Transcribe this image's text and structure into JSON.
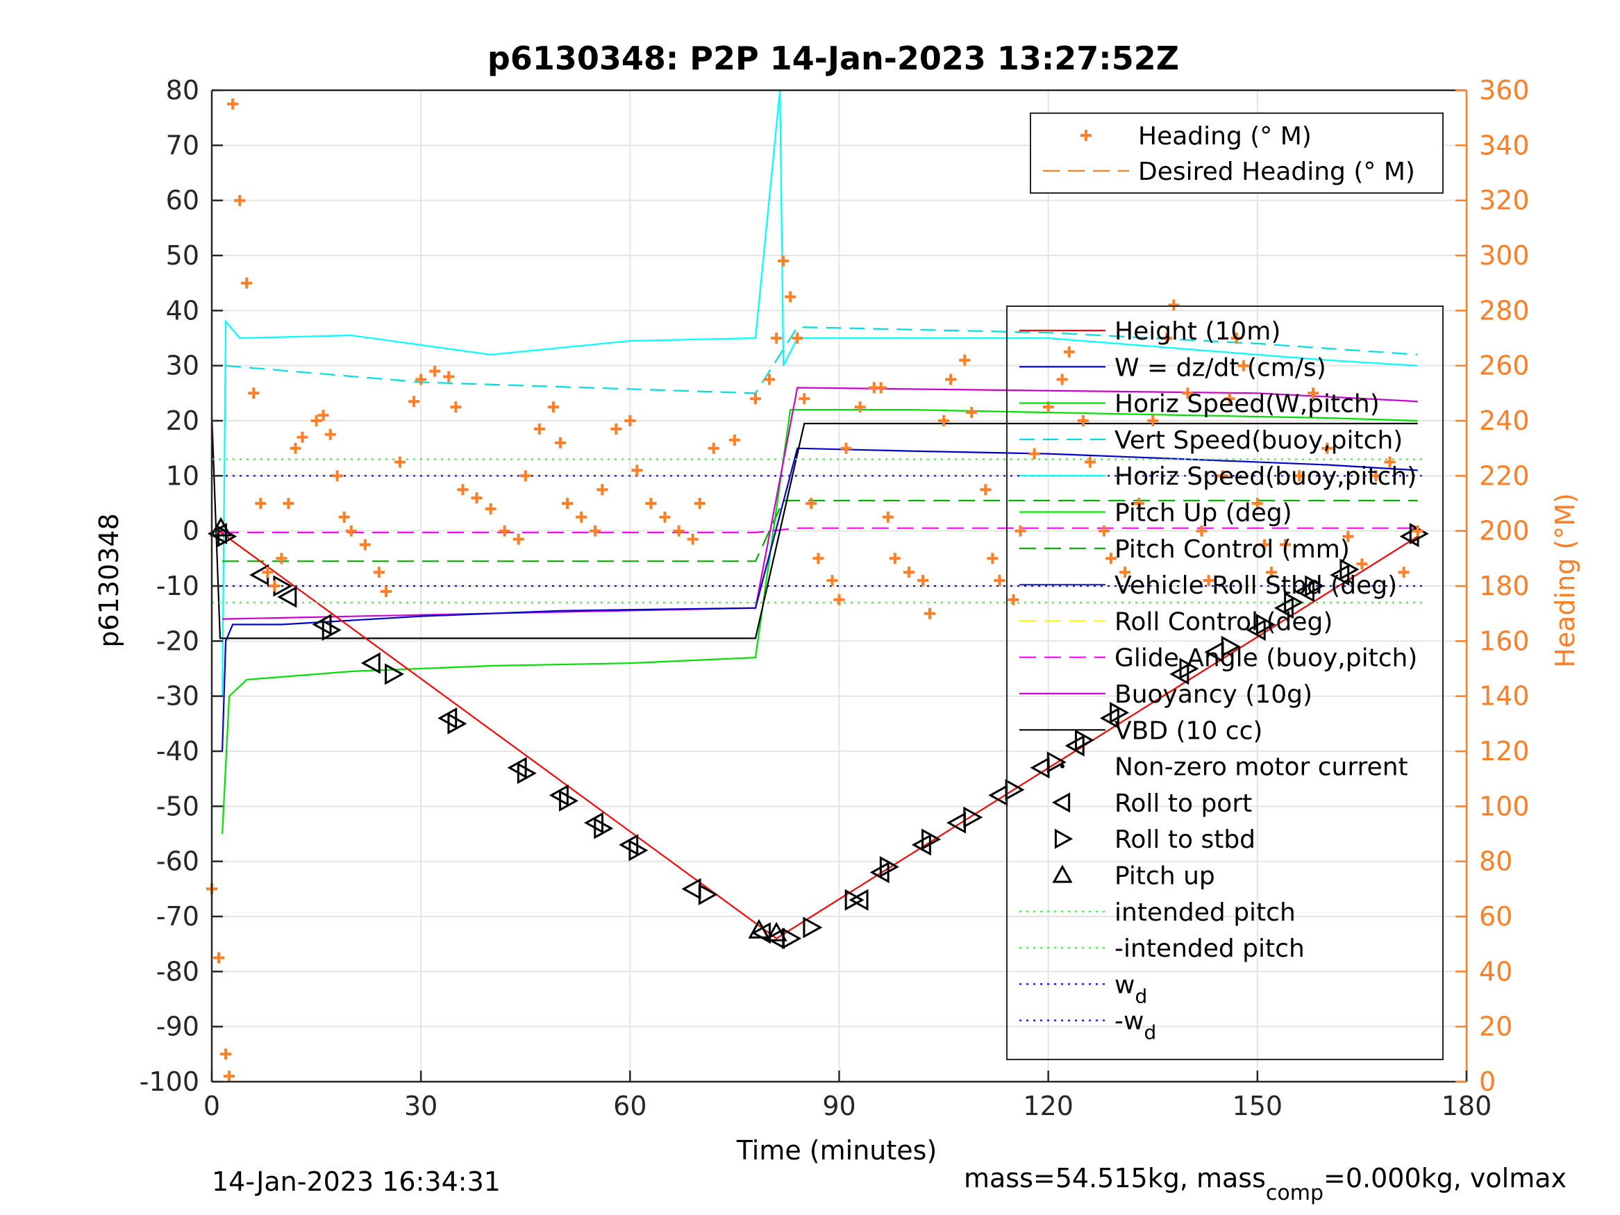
{
  "title": "p6130348: P2P 14-Jan-2023 13:27:52Z",
  "footer_left": "14-Jan-2023 16:34:31",
  "footer_right": {
    "pre": "mass=54.515kg, mass",
    "sub": "comp",
    "post": "=0.000kg, volmax"
  },
  "colors": {
    "heading": "#ff7f27",
    "height": "#ff0000",
    "w": "#0000cc",
    "horiz_speed": "#00e000",
    "vert_speed_buoy": "#00dddd",
    "horiz_speed_buoy": "#00ffff",
    "pitch_up": "#00ee00",
    "pitch_control": "#00aa00",
    "roll": "#3333cc",
    "roll_control": "#ffff00",
    "glide_angle": "#ff00ff",
    "buoyancy": "#cc00cc",
    "vbd": "#000000",
    "intended_pitch": "#44ee44",
    "wd": "#0000ff"
  },
  "chart_data": {
    "type": "line",
    "xlabel": "Time (minutes)",
    "ylabel_left": "p6130348",
    "ylabel_right": "Heading (°M)",
    "xlim": [
      0,
      180
    ],
    "ylim_left": [
      -100,
      80
    ],
    "ylim_right": [
      0,
      360
    ],
    "xticks": [
      0,
      30,
      60,
      90,
      120,
      150,
      180
    ],
    "yticks_left": [
      -100,
      -90,
      -80,
      -70,
      -60,
      -50,
      -40,
      -30,
      -20,
      -10,
      0,
      10,
      20,
      30,
      40,
      50,
      60,
      70,
      80
    ],
    "yticks_right": [
      0,
      20,
      40,
      60,
      80,
      100,
      120,
      140,
      160,
      180,
      200,
      220,
      240,
      260,
      280,
      300,
      320,
      340,
      360
    ],
    "grid": true,
    "legend_heading": {
      "placement": "top-right",
      "entries": [
        "Heading (° M)",
        "Desired Heading (° M)"
      ]
    },
    "legend_main": {
      "placement": "right",
      "entries": [
        "Height (10m)",
        "W = dz/dt (cm/s)",
        "Horiz Speed(W,pitch)",
        "Vert Speed(buoy,pitch)",
        "Horiz Speed(buoy,pitch)",
        "Pitch Up (deg)",
        "Pitch Control (mm)",
        "Vehicle Roll Stbd (deg)",
        "Roll Control (deg)",
        "Glide Angle (buoy,pitch)",
        "Buoyancy (10g)",
        "VBD (10 cc)",
        "Non-zero motor current",
        "Roll to port",
        "Roll to stbd",
        "Pitch up",
        "intended pitch",
        "-intended pitch",
        "w_d",
        "-w_d"
      ]
    },
    "series": {
      "height": {
        "x": [
          1,
          81,
          173
        ],
        "y": [
          0,
          -74,
          -1
        ]
      },
      "vbd": {
        "x": [
          0,
          1.2,
          78,
          85,
          173
        ],
        "y": [
          21,
          -19.5,
          -19.5,
          19.5,
          19.5
        ]
      },
      "w": {
        "x": [
          1.5,
          2,
          3,
          10,
          30,
          50,
          78,
          84,
          100,
          120,
          140,
          160,
          173
        ],
        "y": [
          -40,
          -20,
          -17,
          -17,
          -15.5,
          -14.5,
          -14,
          15,
          14.5,
          14,
          13,
          12,
          11
        ]
      },
      "horiz_speed_w": {
        "x": [
          1.5,
          2.5,
          5,
          20,
          40,
          60,
          78,
          83,
          100,
          120,
          140,
          160,
          173
        ],
        "y": [
          -55,
          -30,
          -27,
          -25.5,
          -24.5,
          -24,
          -23,
          22,
          22,
          21.5,
          21,
          20.5,
          20
        ]
      },
      "horiz_speed_buoy": {
        "x": [
          1.5,
          2,
          4,
          20,
          40,
          60,
          78,
          81.5,
          82,
          84,
          100,
          120,
          140,
          160,
          173
        ],
        "y": [
          -30,
          38,
          35,
          35.5,
          32,
          34.5,
          35,
          80,
          30,
          35,
          35,
          35,
          33,
          31,
          30
        ]
      },
      "vert_speed_buoy": {
        "x": [
          2,
          30,
          78,
          84,
          120,
          150,
          173
        ],
        "y": [
          30,
          27,
          25,
          37,
          36,
          34,
          32
        ]
      },
      "buoyancy": {
        "x": [
          1.5,
          78,
          84,
          150,
          173
        ],
        "y": [
          -16,
          -14,
          26,
          25,
          23.5
        ]
      },
      "glide_angle": {
        "x": [
          1.5,
          78,
          84,
          173
        ],
        "y": [
          -0.3,
          -0.3,
          0.5,
          0.5
        ]
      },
      "pitch_control": {
        "x": [
          1.5,
          78,
          82,
          173
        ],
        "y": [
          -5.5,
          -5.5,
          5.5,
          5.5
        ]
      },
      "intended_pitch": {
        "value": 13
      },
      "neg_intended_pitch": {
        "value": -13
      },
      "wd": {
        "value": 10
      },
      "neg_wd": {
        "value": -10
      },
      "heading": {
        "x": [
          0,
          1,
          2,
          2.5,
          3,
          4,
          5,
          6,
          7,
          8,
          9,
          10,
          11,
          12,
          13,
          15,
          16,
          17,
          18,
          19,
          20,
          22,
          24,
          25,
          27,
          29,
          30,
          32,
          34,
          35,
          36,
          38,
          40,
          42,
          44,
          45,
          47,
          49,
          50,
          51,
          53,
          55,
          56,
          58,
          60,
          61,
          63,
          65,
          67,
          69,
          70,
          72,
          75,
          78,
          80,
          81,
          82,
          83,
          84,
          85,
          86,
          87,
          89,
          90,
          91,
          93,
          95,
          96,
          97,
          98,
          100,
          102,
          103,
          105,
          106,
          108,
          109,
          111,
          112,
          113,
          115,
          116,
          118,
          120,
          122,
          123,
          125,
          126,
          128,
          129,
          131,
          133,
          135,
          137,
          138,
          140,
          142,
          143,
          145,
          146,
          147,
          148,
          150,
          151,
          152,
          154,
          156,
          158,
          160,
          163,
          165,
          167,
          169,
          171,
          173
        ],
        "y": [
          70,
          45,
          10,
          2,
          355,
          320,
          290,
          250,
          210,
          185,
          180,
          190,
          210,
          230,
          234,
          240,
          242,
          235,
          220,
          205,
          200,
          195,
          185,
          178,
          225,
          247,
          255,
          258,
          256,
          245,
          215,
          212,
          208,
          200,
          197,
          220,
          237,
          245,
          232,
          210,
          205,
          200,
          215,
          237,
          240,
          222,
          210,
          205,
          200,
          197,
          210,
          230,
          233,
          248,
          255,
          270,
          298,
          285,
          270,
          248,
          210,
          190,
          182,
          175,
          230,
          245,
          252,
          252,
          205,
          190,
          185,
          182,
          170,
          240,
          255,
          262,
          243,
          215,
          190,
          182,
          175,
          200,
          228,
          245,
          255,
          265,
          240,
          225,
          200,
          190,
          185,
          210,
          240,
          270,
          282,
          250,
          200,
          182,
          220,
          248,
          270,
          260,
          210,
          195,
          185,
          195,
          220,
          250,
          230,
          198,
          188,
          220,
          225,
          185,
          200
        ]
      },
      "roll_to_port": {
        "x": [
          1,
          7,
          11,
          16,
          23,
          34,
          44,
          50,
          55,
          60,
          69,
          79,
          81,
          93,
          96,
          102,
          107,
          113,
          119,
          124,
          129,
          139,
          144,
          150,
          154,
          157,
          162,
          172
        ],
        "y": [
          -0.5,
          -8,
          -12,
          -17,
          -24,
          -34,
          -43,
          -48,
          -53,
          -57,
          -65,
          -73,
          -74,
          -67,
          -62,
          -57,
          -53,
          -48,
          -43,
          -39,
          -34,
          -26,
          -22,
          -18,
          -14,
          -11,
          -8,
          -1
        ]
      },
      "roll_to_stbd": {
        "x": [
          2,
          10,
          17,
          26,
          35,
          45,
          51,
          56,
          61,
          71,
          83,
          86,
          92,
          97,
          103,
          109,
          115,
          121,
          125,
          130,
          140,
          146,
          151,
          155,
          158,
          163,
          173
        ],
        "y": [
          -1,
          -10,
          -18,
          -26,
          -35,
          -44,
          -49,
          -54,
          -58,
          -66,
          -74,
          -72,
          -67,
          -61,
          -56,
          -52,
          -47,
          -42,
          -38,
          -33,
          -25,
          -21,
          -17,
          -13,
          -10,
          -7,
          -0.5
        ]
      },
      "pitch_up": {
        "x": [
          1.3,
          78.5,
          81
        ],
        "y": [
          0.5,
          -72.5,
          -73
        ]
      }
    }
  }
}
